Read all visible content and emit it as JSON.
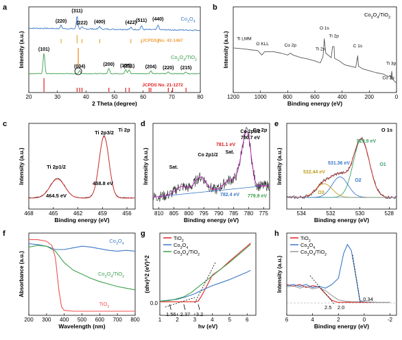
{
  "chart_data": [
    {
      "panel": "a",
      "type": "line",
      "xlabel": "2 Theta (degree)",
      "ylabel": "Intensity (a.u.)",
      "xlim": [
        20,
        80
      ],
      "xticks": [
        "20",
        "30",
        "40",
        "50",
        "60",
        "70",
        "80"
      ],
      "series": [
        {
          "name": "Co3O4",
          "color": "#3a78c8",
          "peaks": [
            {
              "x": 31.3,
              "h": 0.08,
              "label": "(220)"
            },
            {
              "x": 36.9,
              "h": 0.33,
              "label": "(311)"
            },
            {
              "x": 38.6,
              "h": 0.04,
              "label": "(222)"
            },
            {
              "x": 44.8,
              "h": 0.07,
              "label": "(400)"
            },
            {
              "x": 55.7,
              "h": 0.05,
              "label": "(422)"
            },
            {
              "x": 59.4,
              "h": 0.1,
              "label": "(511)"
            },
            {
              "x": 65.2,
              "h": 0.13,
              "label": "(440)"
            }
          ]
        },
        {
          "name": "Co3O4/TiO2",
          "color": "#3aa04a",
          "peaks": [
            {
              "x": 25.3,
              "h": 0.75,
              "label": "(101)"
            },
            {
              "x": 37.8,
              "h": 0.12,
              "label": "(004)"
            },
            {
              "x": 48.0,
              "h": 0.2,
              "label": "(200)"
            },
            {
              "x": 53.9,
              "h": 0.15,
              "label": "(105)"
            },
            {
              "x": 55.1,
              "h": 0.14,
              "label": "(211)"
            },
            {
              "x": 62.7,
              "h": 0.11,
              "label": "(204)"
            },
            {
              "x": 68.8,
              "h": 0.07,
              "label": "(220)"
            },
            {
              "x": 75.0,
              "h": 0.07,
              "label": "(215)"
            }
          ]
        }
      ],
      "references": [
        {
          "name": "JCPDS No. 42-1467",
          "color": "#f0a040",
          "positions": [
            31.3,
            36.9,
            38.6,
            44.8,
            55.7,
            59.4,
            65.2
          ]
        },
        {
          "name": "JCPDS No. 21-1272",
          "color": "#e02020",
          "positions": [
            25.3,
            36.9,
            37.8,
            38.6,
            48.0,
            53.9,
            55.1,
            62.1,
            62.7,
            68.8,
            70.3,
            75.0
          ]
        }
      ]
    },
    {
      "panel": "b",
      "type": "line",
      "title": "Co3O4/TiO2",
      "xlabel": "Binding energy (eV)",
      "ylabel": "Intensity (a.u.)",
      "xlim": [
        1200,
        0
      ],
      "xticks": [
        "1200",
        "1000",
        "800",
        "600",
        "400",
        "200",
        "0"
      ],
      "color": "#555555",
      "x": [
        1200,
        1150,
        1100,
        1070,
        1020,
        990,
        970,
        900,
        850,
        800,
        780,
        760,
        700,
        650,
        600,
        560,
        540,
        531,
        520,
        480,
        470,
        459,
        455,
        420,
        380,
        300,
        285,
        280,
        250,
        200,
        150,
        100,
        80,
        60,
        45,
        40,
        35,
        30,
        20,
        10,
        0
      ],
      "y": [
        0.58,
        0.57,
        0.56,
        0.55,
        0.54,
        0.47,
        0.52,
        0.52,
        0.5,
        0.47,
        0.5,
        0.47,
        0.43,
        0.41,
        0.38,
        0.35,
        0.45,
        0.72,
        0.5,
        0.43,
        0.6,
        0.6,
        0.42,
        0.38,
        0.32,
        0.28,
        0.46,
        0.3,
        0.26,
        0.23,
        0.2,
        0.18,
        0.16,
        0.14,
        0.16,
        0.1,
        0.22,
        0.12,
        0.08,
        0.06,
        0.04
      ],
      "annotations": [
        "Ti LMM",
        "O KLL",
        "Co 2p",
        "Ti 2s",
        "O 1s",
        "Ti 2p",
        "C 1s",
        "Ti 3p",
        "Co 3p"
      ]
    },
    {
      "panel": "c",
      "type": "line",
      "title": "Ti 2p",
      "xlabel": "Binding energy (eV)",
      "ylabel": "Intensity (a.u.)",
      "xlim": [
        468,
        455
      ],
      "xticks": [
        "468",
        "465",
        "462",
        "459",
        "456"
      ],
      "peaks": [
        {
          "label": "Ti 2p1/2",
          "value": "464.5 eV",
          "x": 464.5,
          "h": 0.32
        },
        {
          "label": "Ti 2p3/2",
          "value": "458.8 eV",
          "x": 458.8,
          "h": 0.9
        }
      ]
    },
    {
      "panel": "d",
      "type": "line",
      "title": "Co 2p",
      "xlabel": "Binding energy (eV)",
      "ylabel": "Intensity (a.u.)",
      "xlim": [
        812,
        773
      ],
      "xticks": [
        "810",
        "805",
        "800",
        "795",
        "790",
        "785",
        "780",
        "775"
      ],
      "peaks": [
        {
          "label": "Co 2p1/2",
          "x": 796.2
        },
        {
          "label": "Co 2p3/2",
          "value": "780.7 eV",
          "x": 780.7
        },
        {
          "label": "Sat.",
          "x": 802.5
        },
        {
          "label": "Sat.",
          "x": 786.5
        }
      ],
      "annotations": [
        "781.1 eV",
        "782.4 eV",
        "779.9 eV"
      ]
    },
    {
      "panel": "e",
      "type": "line",
      "title": "O 1s",
      "xlabel": "Binding energy (eV)",
      "ylabel": "Intensity (a.u.)",
      "xlim": [
        535,
        527.5
      ],
      "xticks": [
        "534",
        "532",
        "530",
        "528"
      ],
      "components": [
        {
          "name": "O1",
          "value": "529.9 eV",
          "x": 529.9,
          "h": 0.85,
          "color": "#3aa06a"
        },
        {
          "name": "O2",
          "value": "531.36 eV",
          "x": 531.36,
          "h": 0.3,
          "color": "#3a78c8"
        },
        {
          "name": "O3",
          "value": "532.44 eV",
          "x": 532.44,
          "h": 0.2,
          "color": "#c0a020"
        }
      ]
    },
    {
      "panel": "f",
      "type": "line",
      "xlabel": "Wavelength (nm)",
      "ylabel": "Absorbance (a.u.)",
      "xlim": [
        200,
        800
      ],
      "xticks": [
        "200",
        "300",
        "400",
        "500",
        "600",
        "700",
        "800"
      ],
      "series": [
        {
          "name": "Co3O4",
          "color": "#3a78c8",
          "x": [
            200,
            250,
            300,
            350,
            400,
            450,
            500,
            550,
            600,
            650,
            700,
            750,
            800
          ],
          "y": [
            0.87,
            0.86,
            0.84,
            0.8,
            0.8,
            0.82,
            0.84,
            0.83,
            0.81,
            0.79,
            0.78,
            0.79,
            0.78
          ]
        },
        {
          "name": "Co3O4/TiO2",
          "color": "#3aa04a",
          "x": [
            200,
            250,
            300,
            350,
            400,
            450,
            500,
            550,
            600,
            650,
            700,
            750,
            800
          ],
          "y": [
            0.83,
            0.85,
            0.84,
            0.78,
            0.64,
            0.55,
            0.5,
            0.45,
            0.41,
            0.38,
            0.35,
            0.33,
            0.31
          ]
        },
        {
          "name": "TiO2",
          "color": "#f05050",
          "x": [
            200,
            250,
            300,
            330,
            350,
            370,
            385,
            400,
            450,
            500,
            600,
            700,
            800
          ],
          "y": [
            0.92,
            0.92,
            0.9,
            0.85,
            0.7,
            0.3,
            0.1,
            0.06,
            0.05,
            0.05,
            0.05,
            0.05,
            0.05
          ]
        }
      ]
    },
    {
      "panel": "g",
      "type": "line",
      "xlabel": "hv (eV)",
      "ylabel": "(αhv)^2 (eV)^2",
      "xlim": [
        1,
        6.5
      ],
      "xticks": [
        "1",
        "2",
        "3",
        "4",
        "5",
        "6"
      ],
      "yticks": [
        "0.0"
      ],
      "series": [
        {
          "name": "TiO2",
          "color": "#e02020",
          "x": [
            1.0,
            2.0,
            3.0,
            3.2,
            3.4,
            3.7,
            4.0,
            4.5,
            5.0,
            5.5,
            6.0,
            6.2
          ],
          "y": [
            0.02,
            0.02,
            0.02,
            0.03,
            0.12,
            0.28,
            0.45,
            0.55,
            0.68,
            0.8,
            0.92,
            0.97
          ]
        },
        {
          "name": "Co3O4",
          "color": "#3a78c8",
          "x": [
            1.0,
            2.0,
            2.5,
            3.0,
            3.5,
            4.0,
            4.5,
            5.0,
            5.5,
            6.0,
            6.2
          ],
          "y": [
            0.03,
            0.06,
            0.1,
            0.15,
            0.22,
            0.28,
            0.33,
            0.38,
            0.44,
            0.5,
            0.53
          ]
        },
        {
          "name": "Co3O4/TiO2",
          "color": "#3aa04a",
          "x": [
            1.0,
            1.56,
            2.0,
            2.37,
            2.8,
            3.2,
            3.6,
            4.0,
            4.5,
            5.0,
            5.5,
            6.0,
            6.2
          ],
          "y": [
            0.03,
            0.04,
            0.07,
            0.1,
            0.17,
            0.26,
            0.35,
            0.44,
            0.55,
            0.66,
            0.78,
            0.9,
            0.95
          ]
        }
      ],
      "annotations": [
        "1.56",
        "2.37",
        "3.2"
      ]
    },
    {
      "panel": "h",
      "type": "line",
      "xlabel": "Binding energy (eV)",
      "ylabel": "Intensity (a.u.)",
      "xlim": [
        6,
        -2.5
      ],
      "xticks": [
        "6",
        "4",
        "2",
        "0",
        "-2"
      ],
      "series": [
        {
          "name": "TiO2",
          "color": "#e02020",
          "x": [
            6,
            5.5,
            5,
            4.5,
            4,
            3.5,
            3,
            2.5,
            2,
            1.5,
            1,
            0,
            -1,
            -2
          ],
          "y": [
            0.3,
            0.27,
            0.3,
            0.25,
            0.28,
            0.26,
            0.15,
            0.04,
            0.01,
            0.01,
            0.01,
            0.01,
            0.01,
            0.01
          ]
        },
        {
          "name": "Co3O4",
          "color": "#3a78c8",
          "x": [
            6,
            5.5,
            5,
            4.5,
            4,
            3.5,
            3,
            2.5,
            2,
            1.6,
            1.3,
            1.0,
            0.7,
            0.34,
            0,
            -1,
            -2
          ],
          "y": [
            0.28,
            0.3,
            0.27,
            0.3,
            0.25,
            0.27,
            0.24,
            0.3,
            0.4,
            0.8,
            0.95,
            0.85,
            0.5,
            0.04,
            0.02,
            0.01,
            0.01
          ]
        },
        {
          "name": "Co3O4/TiO2",
          "color": "#999999",
          "x": [
            6,
            5.5,
            5,
            4.5,
            4,
            3.5,
            3,
            2.5,
            2,
            1.5,
            1,
            0,
            -1,
            -2
          ],
          "y": [
            0.26,
            0.28,
            0.24,
            0.27,
            0.23,
            0.25,
            0.2,
            0.12,
            0.05,
            0.03,
            0.02,
            0.02,
            0.01,
            0.01
          ]
        }
      ],
      "annotations": [
        "2.5",
        "2.0",
        "0.34"
      ]
    }
  ]
}
